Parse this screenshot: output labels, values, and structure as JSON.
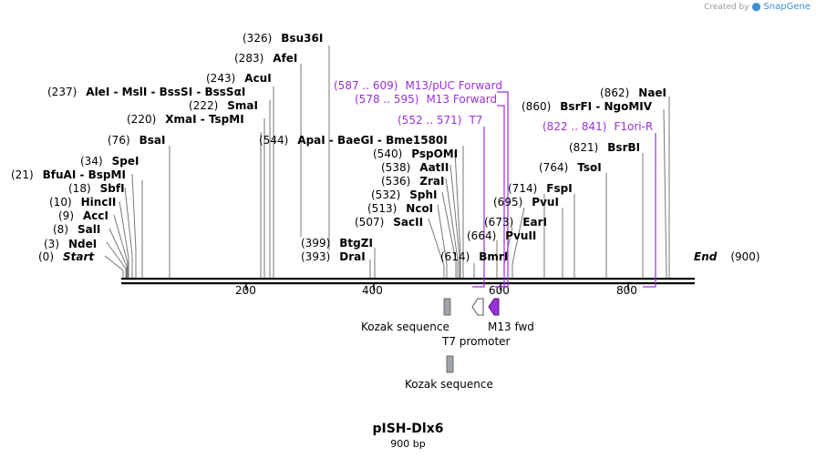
{
  "map": {
    "name": "pISH-Dlx6",
    "length_label": "900 bp",
    "length_bp": 900,
    "start_label": "Start",
    "end_label": "End",
    "start_pos": "(0)",
    "end_pos": "(900)"
  },
  "branding": {
    "created_by": "Created by",
    "product": "SnapGene"
  },
  "ruler": [
    {
      "bp": 200,
      "label": "200"
    },
    {
      "bp": 400,
      "label": "400"
    },
    {
      "bp": 600,
      "label": "600"
    },
    {
      "bp": 800,
      "label": "800"
    }
  ],
  "enzyme_labels": [
    {
      "pos": "(3)",
      "text": "NdeI",
      "site": 3
    },
    {
      "pos": "(8)",
      "text": "SalI",
      "site": 8
    },
    {
      "pos": "(9)",
      "text": "AccI",
      "site": 9
    },
    {
      "pos": "(10)",
      "text": "HincII",
      "site": 10
    },
    {
      "pos": "(18)",
      "text": "SbfI",
      "site": 18
    },
    {
      "pos": "(21)",
      "text": "BfuAI  -  BspMI",
      "site": 21
    },
    {
      "pos": "(34)",
      "text": "SpeI",
      "site": 34
    },
    {
      "pos": "(76)",
      "text": "BsaI",
      "site": 76
    },
    {
      "pos": "(220)",
      "text": "XmaI  -  TspMI",
      "site": 220
    },
    {
      "pos": "(222)",
      "text": "SmaI",
      "site": 222
    },
    {
      "pos": "(237)",
      "text": "AleI  -  MslI  -  BssSI  -  BssSαI",
      "site": 237
    },
    {
      "pos": "(243)",
      "text": "AcuI",
      "site": 243
    },
    {
      "pos": "(283)",
      "text": "AfeI",
      "site": 283
    },
    {
      "pos": "(326)",
      "text": "Bsu36I",
      "site": 326
    },
    {
      "pos": "(393)",
      "text": "DraI",
      "site": 393
    },
    {
      "pos": "(399)",
      "text": "BtgZI",
      "site": 399
    },
    {
      "pos": "(544)",
      "text": "ApaI  -  BaeGI  -  Bme1580I",
      "site": 544
    },
    {
      "pos": "(540)",
      "text": "PspOMI",
      "site": 540
    },
    {
      "pos": "(538)",
      "text": "AatII",
      "site": 538
    },
    {
      "pos": "(536)",
      "text": "ZraI",
      "site": 536
    },
    {
      "pos": "(532)",
      "text": "SphI",
      "site": 532
    },
    {
      "pos": "(513)",
      "text": "NcoI",
      "site": 513
    },
    {
      "pos": "(507)",
      "text": "SacII",
      "site": 507
    },
    {
      "pos": "(614)",
      "text": "BmrI",
      "site": 614
    },
    {
      "pos": "(664)",
      "text": "PvuII",
      "site": 664
    },
    {
      "pos": "(673)",
      "text": "EarI",
      "site": 673
    },
    {
      "pos": "(695)",
      "text": "PvuI",
      "site": 695
    },
    {
      "pos": "(714)",
      "text": "FspI",
      "site": 714
    },
    {
      "pos": "(764)",
      "text": "TsoI",
      "site": 764
    },
    {
      "pos": "(821)",
      "text": "BsrBI",
      "site": 821
    },
    {
      "pos": "(860)",
      "text": "BsrFI  -  NgoMIV",
      "site": 860
    },
    {
      "pos": "(862)",
      "text": "NaeI",
      "site": 862
    }
  ],
  "primer_labels": [
    {
      "pos": "(587 .. 609)",
      "text": "M13/pUC Forward"
    },
    {
      "pos": "(578 .. 595)",
      "text": "M13 Forward"
    },
    {
      "pos": "(552 .. 571)",
      "text": "T7"
    },
    {
      "pos": "(822 .. 841)",
      "text": "F1ori-R"
    }
  ],
  "features": [
    {
      "name": "Kozak sequence",
      "start": 500,
      "end": 510,
      "type": "kozak"
    },
    {
      "name": "T7 promoter",
      "start": 555,
      "end": 572,
      "type": "promoter"
    },
    {
      "name": "M13 fwd",
      "start": 578,
      "end": 595,
      "type": "primer_bind"
    },
    {
      "name": "Kozak sequence",
      "start": 504,
      "end": 514,
      "type": "kozak"
    }
  ],
  "colors": {
    "backbone": "#000000",
    "primer": "#9b30d9",
    "kozak": "#a0a4ab",
    "m13": "#9b30d9",
    "brand": "#3a8fd6"
  }
}
